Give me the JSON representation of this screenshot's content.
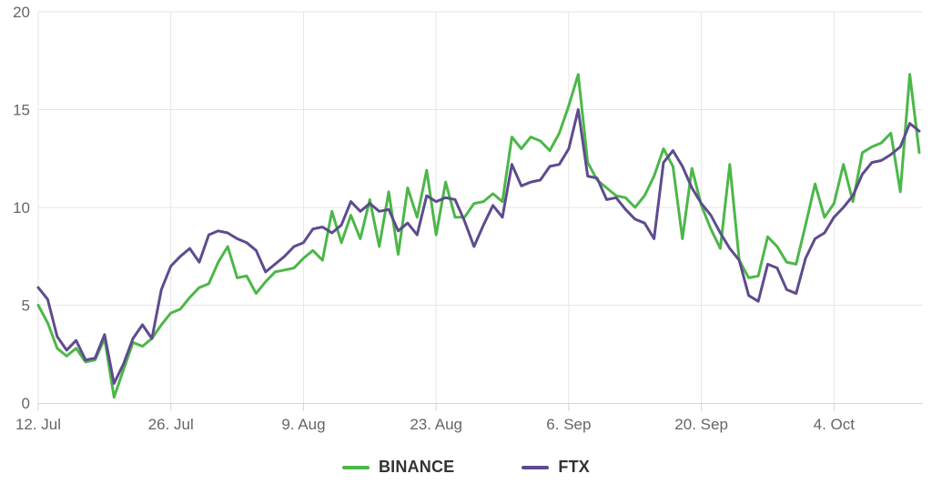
{
  "chart_data": {
    "type": "line",
    "title": "",
    "xlabel": "",
    "ylabel": "",
    "x_tick_labels": [
      "12. Jul",
      "26. Jul",
      "9. Aug",
      "23. Aug",
      "6. Sep",
      "20. Sep",
      "4. Oct"
    ],
    "x_tick_days": [
      0,
      14,
      28,
      42,
      56,
      70,
      84
    ],
    "days_total": 93,
    "y_ticks": [
      0,
      5,
      10,
      15,
      20
    ],
    "ylim": [
      0,
      20
    ],
    "grid": true,
    "legend_position": "bottom-center",
    "colors": {
      "background": "#ffffff",
      "grid_line": "#e6e6e6",
      "axis_line": "#ccd6eb",
      "tick_text": "#666666",
      "legend_text": "#333333"
    },
    "series": [
      {
        "name": "BINANCE",
        "color": "#4cb749",
        "values": [
          5.0,
          4.1,
          2.8,
          2.4,
          2.8,
          2.1,
          2.2,
          3.3,
          0.3,
          1.7,
          3.1,
          2.9,
          3.3,
          4.0,
          4.6,
          4.8,
          5.4,
          5.9,
          6.1,
          7.2,
          8.0,
          6.4,
          6.5,
          5.6,
          6.2,
          6.7,
          6.8,
          6.9,
          7.4,
          7.8,
          7.3,
          9.8,
          8.2,
          9.6,
          8.4,
          10.4,
          8.0,
          10.8,
          7.6,
          11.0,
          9.5,
          11.9,
          8.6,
          11.3,
          9.5,
          9.5,
          10.2,
          10.3,
          10.7,
          10.3,
          13.6,
          13.0,
          13.6,
          13.4,
          12.9,
          13.8,
          15.2,
          16.8,
          12.3,
          11.4,
          11.0,
          10.6,
          10.5,
          10.0,
          10.6,
          11.6,
          13.0,
          12.1,
          8.4,
          12.0,
          10.1,
          8.9,
          7.9,
          12.2,
          7.3,
          6.4,
          6.5,
          8.5,
          8.0,
          7.2,
          7.1,
          9.1,
          11.2,
          9.5,
          10.2,
          12.2,
          10.3,
          12.8,
          13.1,
          13.3,
          13.8,
          10.8,
          16.8,
          12.8
        ]
      },
      {
        "name": "FTX",
        "color": "#5e4b8e",
        "values": [
          5.9,
          5.3,
          3.4,
          2.7,
          3.2,
          2.2,
          2.3,
          3.5,
          1.0,
          2.0,
          3.3,
          4.0,
          3.3,
          5.8,
          7.0,
          7.5,
          7.9,
          7.2,
          8.6,
          8.8,
          8.7,
          8.4,
          8.2,
          7.8,
          6.7,
          7.1,
          7.5,
          8.0,
          8.2,
          8.9,
          9.0,
          8.7,
          9.1,
          10.3,
          9.8,
          10.2,
          9.8,
          9.9,
          8.8,
          9.2,
          8.6,
          10.6,
          10.3,
          10.5,
          10.4,
          9.3,
          8.0,
          9.1,
          10.1,
          9.5,
          12.2,
          11.1,
          11.3,
          11.4,
          12.1,
          12.2,
          13.0,
          15.0,
          11.6,
          11.5,
          10.4,
          10.5,
          9.9,
          9.4,
          9.2,
          8.4,
          12.3,
          12.9,
          12.1,
          11.0,
          10.2,
          9.6,
          8.7,
          7.9,
          7.3,
          5.5,
          5.2,
          7.1,
          6.9,
          5.8,
          5.6,
          7.4,
          8.4,
          8.7,
          9.5,
          10.0,
          10.6,
          11.7,
          12.3,
          12.4,
          12.7,
          13.1,
          14.3,
          13.9
        ]
      }
    ]
  }
}
